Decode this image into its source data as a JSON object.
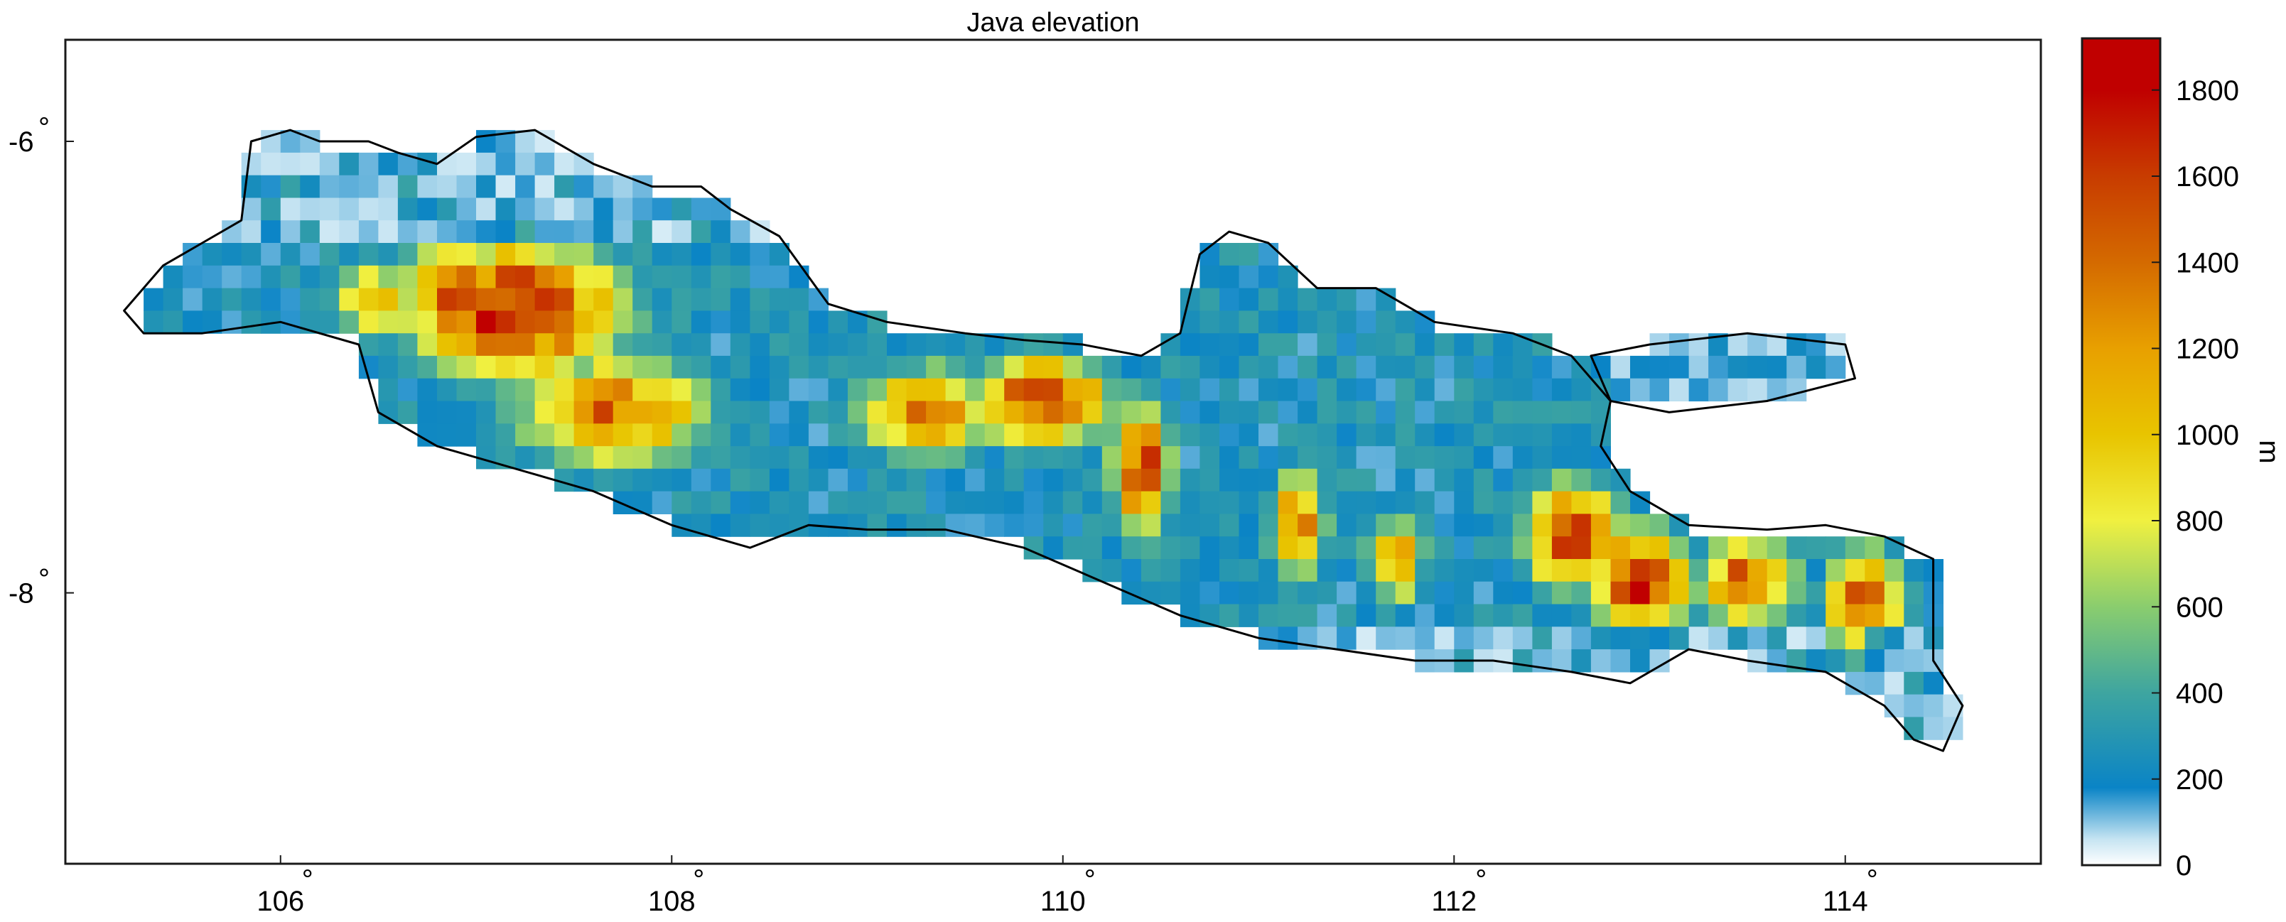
{
  "map": {
    "title": "Java elevation",
    "lon_range": [
      104.9,
      115.0
    ],
    "lat_range": [
      -5.55,
      -9.2
    ],
    "lon_ticks": [
      {
        "value": 106,
        "label": "106"
      },
      {
        "value": 108,
        "label": "108"
      },
      {
        "value": 110,
        "label": "110"
      },
      {
        "value": 112,
        "label": "112"
      },
      {
        "value": 114,
        "label": "114"
      }
    ],
    "lat_ticks": [
      {
        "value": -6,
        "label": "-6"
      },
      {
        "value": -8,
        "label": "-8"
      }
    ],
    "degree_symbol": "°",
    "cell_size_deg": 0.1,
    "ridges": [
      {
        "lon": 107.2,
        "lat": -6.75,
        "peak": 1900,
        "rx": 0.55,
        "ry": 0.3
      },
      {
        "lon": 106.9,
        "lat": -6.65,
        "peak": 1700,
        "rx": 0.3,
        "ry": 0.2
      },
      {
        "lon": 106.5,
        "lat": -6.7,
        "peak": 1000,
        "rx": 0.3,
        "ry": 0.2
      },
      {
        "lon": 107.7,
        "lat": -7.2,
        "peak": 1500,
        "rx": 0.5,
        "ry": 0.25
      },
      {
        "lon": 109.3,
        "lat": -7.2,
        "peak": 1500,
        "rx": 0.35,
        "ry": 0.2
      },
      {
        "lon": 109.9,
        "lat": -7.15,
        "peak": 1800,
        "rx": 0.35,
        "ry": 0.2
      },
      {
        "lon": 110.4,
        "lat": -7.45,
        "peak": 1750,
        "rx": 0.15,
        "ry": 0.3
      },
      {
        "lon": 111.2,
        "lat": -7.7,
        "peak": 1400,
        "rx": 0.15,
        "ry": 0.25
      },
      {
        "lon": 111.7,
        "lat": -7.85,
        "peak": 1300,
        "rx": 0.15,
        "ry": 0.2
      },
      {
        "lon": 112.6,
        "lat": -7.75,
        "peak": 1700,
        "rx": 0.25,
        "ry": 0.25
      },
      {
        "lon": 112.95,
        "lat": -7.95,
        "peak": 1800,
        "rx": 0.25,
        "ry": 0.25
      },
      {
        "lon": 113.5,
        "lat": -7.95,
        "peak": 1600,
        "rx": 0.25,
        "ry": 0.2
      },
      {
        "lon": 114.1,
        "lat": -8.05,
        "peak": 1700,
        "rx": 0.2,
        "ry": 0.25
      }
    ]
  },
  "colorbar": {
    "label": "m",
    "min": 0,
    "max": 1920,
    "ticks": [
      {
        "value": 0,
        "label": "0"
      },
      {
        "value": 200,
        "label": "200"
      },
      {
        "value": 400,
        "label": "400"
      },
      {
        "value": 600,
        "label": "600"
      },
      {
        "value": 800,
        "label": "800"
      },
      {
        "value": 1000,
        "label": "1000"
      },
      {
        "value": 1200,
        "label": "1200"
      },
      {
        "value": 1400,
        "label": "1400"
      },
      {
        "value": 1600,
        "label": "1600"
      },
      {
        "value": 1800,
        "label": "1800"
      }
    ],
    "stops": [
      {
        "value": 0,
        "color": "#ffffff"
      },
      {
        "value": 60,
        "color": "#c6e4f2"
      },
      {
        "value": 180,
        "color": "#0a84c6"
      },
      {
        "value": 400,
        "color": "#3ea5a0"
      },
      {
        "value": 600,
        "color": "#8acd6e"
      },
      {
        "value": 800,
        "color": "#f0f040"
      },
      {
        "value": 1000,
        "color": "#e8c400"
      },
      {
        "value": 1200,
        "color": "#e8a000"
      },
      {
        "value": 1400,
        "color": "#d46a00"
      },
      {
        "value": 1600,
        "color": "#c83c00"
      },
      {
        "value": 1800,
        "color": "#c00000"
      },
      {
        "value": 1920,
        "color": "#c00000"
      }
    ]
  },
  "colors": {
    "frame": "#1a1a1a",
    "coastline": "#000000",
    "background": "#ffffff"
  }
}
